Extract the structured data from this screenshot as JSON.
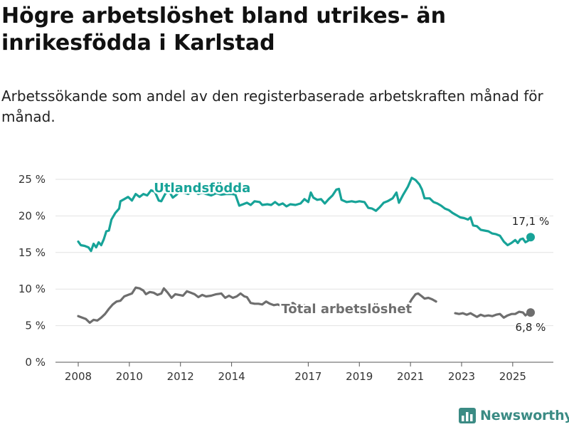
{
  "header": {
    "title": "Högre arbetslöshet bland utrikes- än inrikesfödda i Karlstad",
    "subtitle": "Arbetssökande som andel av den registerbaserade arbetskraften månad för månad."
  },
  "logo": {
    "text": "Newsworthy",
    "icon": "bar-chart-logo-icon"
  },
  "colors": {
    "utlandsfodda": "#17a398",
    "total": "#6e6e6e"
  },
  "chart_data": {
    "type": "line",
    "title": "Högre arbetslöshet bland utrikes- än inrikesfödda i Karlstad",
    "subtitle": "Arbetssökande som andel av den registerbaserade arbetskraften månad för månad.",
    "xlabel": "",
    "ylabel": "",
    "xlim": [
      2008.0,
      2025.7
    ],
    "ylim": [
      0,
      25
    ],
    "y_ticks": [
      0,
      5,
      10,
      15,
      20,
      25
    ],
    "y_tick_labels": [
      "0 %",
      "5 %",
      "10 %",
      "15 %",
      "20 %",
      "25 %"
    ],
    "x_ticks": [
      2008,
      2010,
      2012,
      2014,
      2017,
      2019,
      2021,
      2023,
      2025
    ],
    "x_tick_labels": [
      "2008",
      "2010",
      "2012",
      "2014",
      "2017",
      "2019",
      "2021",
      "2023",
      "2025"
    ],
    "grid": "horizontal",
    "series": [
      {
        "name": "Utlandsfödda",
        "color": "#17a398",
        "end_label": "17,1 %",
        "segments": [
          [
            [
              2008.0,
              16.5
            ],
            [
              2008.1,
              16.0
            ],
            [
              2008.25,
              15.9
            ],
            [
              2008.4,
              15.7
            ],
            [
              2008.5,
              15.2
            ],
            [
              2008.6,
              16.2
            ],
            [
              2008.7,
              15.7
            ],
            [
              2008.8,
              16.4
            ],
            [
              2008.9,
              16.0
            ],
            [
              2009.0,
              16.8
            ],
            [
              2009.1,
              17.9
            ],
            [
              2009.2,
              18.0
            ],
            [
              2009.3,
              19.5
            ],
            [
              2009.45,
              20.4
            ],
            [
              2009.6,
              21.0
            ],
            [
              2009.65,
              22.0
            ],
            [
              2009.8,
              22.3
            ],
            [
              2009.95,
              22.6
            ],
            [
              2010.1,
              22.1
            ],
            [
              2010.25,
              23.0
            ],
            [
              2010.4,
              22.6
            ],
            [
              2010.55,
              23.0
            ],
            [
              2010.7,
              22.8
            ],
            [
              2010.85,
              23.5
            ],
            [
              2011.0,
              23.3
            ],
            [
              2011.15,
              22.1
            ],
            [
              2011.25,
              22.0
            ],
            [
              2011.4,
              23.0
            ],
            [
              2011.55,
              23.4
            ],
            [
              2011.7,
              22.5
            ],
            [
              2011.85,
              22.9
            ],
            [
              2011.95,
              23.3
            ],
            [
              2012.1,
              23.2
            ],
            [
              2012.3,
              23.0
            ],
            [
              2012.5,
              23.4
            ],
            [
              2012.7,
              23.0
            ],
            [
              2012.85,
              23.2
            ],
            [
              2013.0,
              23.0
            ],
            [
              2013.2,
              22.8
            ],
            [
              2013.4,
              23.1
            ],
            [
              2013.6,
              22.9
            ],
            [
              2013.8,
              23.0
            ],
            [
              2014.0,
              23.0
            ],
            [
              2014.15,
              22.9
            ],
            [
              2014.3,
              21.4
            ],
            [
              2014.45,
              21.6
            ],
            [
              2014.6,
              21.8
            ],
            [
              2014.75,
              21.5
            ],
            [
              2014.9,
              22.0
            ],
            [
              2015.1,
              21.9
            ],
            [
              2015.2,
              21.5
            ],
            [
              2015.4,
              21.6
            ],
            [
              2015.55,
              21.5
            ],
            [
              2015.7,
              21.9
            ],
            [
              2015.85,
              21.5
            ],
            [
              2016.0,
              21.7
            ],
            [
              2016.15,
              21.3
            ],
            [
              2016.3,
              21.6
            ],
            [
              2016.5,
              21.5
            ],
            [
              2016.7,
              21.7
            ],
            [
              2016.85,
              22.3
            ],
            [
              2017.0,
              21.9
            ],
            [
              2017.1,
              23.2
            ],
            [
              2017.2,
              22.5
            ],
            [
              2017.35,
              22.2
            ],
            [
              2017.5,
              22.3
            ],
            [
              2017.65,
              21.7
            ],
            [
              2017.8,
              22.3
            ],
            [
              2017.95,
              22.8
            ],
            [
              2018.1,
              23.6
            ],
            [
              2018.2,
              23.7
            ],
            [
              2018.3,
              22.2
            ],
            [
              2018.5,
              21.9
            ],
            [
              2018.7,
              22.0
            ],
            [
              2018.85,
              21.9
            ],
            [
              2019.0,
              22.0
            ],
            [
              2019.2,
              21.9
            ],
            [
              2019.35,
              21.1
            ],
            [
              2019.5,
              21.0
            ],
            [
              2019.65,
              20.7
            ],
            [
              2019.8,
              21.2
            ],
            [
              2019.95,
              21.8
            ],
            [
              2020.1,
              22.0
            ],
            [
              2020.3,
              22.4
            ],
            [
              2020.45,
              23.2
            ],
            [
              2020.55,
              21.8
            ],
            [
              2020.7,
              22.8
            ],
            [
              2020.9,
              24.0
            ],
            [
              2021.05,
              25.2
            ],
            [
              2021.2,
              24.9
            ],
            [
              2021.35,
              24.3
            ],
            [
              2021.45,
              23.6
            ],
            [
              2021.55,
              22.4
            ],
            [
              2021.75,
              22.4
            ],
            [
              2021.9,
              21.9
            ],
            [
              2022.05,
              21.7
            ],
            [
              2022.2,
              21.4
            ],
            [
              2022.35,
              21.0
            ],
            [
              2022.5,
              20.8
            ],
            [
              2022.65,
              20.4
            ],
            [
              2022.8,
              20.1
            ],
            [
              2022.95,
              19.8
            ],
            [
              2023.1,
              19.7
            ],
            [
              2023.25,
              19.5
            ],
            [
              2023.35,
              19.8
            ],
            [
              2023.45,
              18.7
            ],
            [
              2023.6,
              18.6
            ],
            [
              2023.75,
              18.1
            ],
            [
              2023.9,
              18.0
            ],
            [
              2024.05,
              17.9
            ],
            [
              2024.2,
              17.6
            ],
            [
              2024.35,
              17.5
            ],
            [
              2024.5,
              17.3
            ],
            [
              2024.65,
              16.5
            ],
            [
              2024.8,
              16.0
            ],
            [
              2024.95,
              16.3
            ],
            [
              2025.1,
              16.7
            ],
            [
              2025.2,
              16.3
            ],
            [
              2025.3,
              16.8
            ],
            [
              2025.4,
              16.9
            ],
            [
              2025.5,
              16.4
            ],
            [
              2025.6,
              16.6
            ],
            [
              2025.7,
              17.1
            ]
          ]
        ]
      },
      {
        "name": "Total arbetslöshet",
        "color": "#6e6e6e",
        "end_label": "6,8 %",
        "segments": [
          [
            [
              2008.0,
              6.3
            ],
            [
              2008.15,
              6.1
            ],
            [
              2008.3,
              5.9
            ],
            [
              2008.45,
              5.4
            ],
            [
              2008.6,
              5.8
            ],
            [
              2008.75,
              5.7
            ],
            [
              2008.9,
              6.1
            ],
            [
              2009.05,
              6.6
            ],
            [
              2009.2,
              7.3
            ],
            [
              2009.35,
              7.9
            ],
            [
              2009.5,
              8.3
            ],
            [
              2009.65,
              8.4
            ],
            [
              2009.8,
              9.0
            ],
            [
              2009.95,
              9.2
            ],
            [
              2010.1,
              9.4
            ],
            [
              2010.25,
              10.2
            ],
            [
              2010.4,
              10.1
            ],
            [
              2010.55,
              9.8
            ],
            [
              2010.65,
              9.3
            ],
            [
              2010.8,
              9.6
            ],
            [
              2010.95,
              9.5
            ],
            [
              2011.1,
              9.2
            ],
            [
              2011.25,
              9.4
            ],
            [
              2011.35,
              10.1
            ],
            [
              2011.5,
              9.5
            ],
            [
              2011.65,
              8.8
            ],
            [
              2011.8,
              9.3
            ],
            [
              2011.95,
              9.2
            ],
            [
              2012.1,
              9.1
            ],
            [
              2012.25,
              9.7
            ],
            [
              2012.4,
              9.5
            ],
            [
              2012.55,
              9.3
            ],
            [
              2012.7,
              8.9
            ],
            [
              2012.85,
              9.2
            ],
            [
              2013.0,
              9.0
            ],
            [
              2013.2,
              9.1
            ],
            [
              2013.4,
              9.3
            ],
            [
              2013.6,
              9.4
            ],
            [
              2013.75,
              8.8
            ],
            [
              2013.9,
              9.1
            ],
            [
              2014.05,
              8.8
            ],
            [
              2014.2,
              9.0
            ],
            [
              2014.35,
              9.4
            ],
            [
              2014.5,
              9.0
            ],
            [
              2014.6,
              8.9
            ],
            [
              2014.75,
              8.1
            ],
            [
              2014.9,
              8.0
            ],
            [
              2015.05,
              8.0
            ],
            [
              2015.2,
              7.9
            ],
            [
              2015.35,
              8.3
            ],
            [
              2015.5,
              8.0
            ],
            [
              2015.65,
              7.8
            ],
            [
              2015.8,
              7.9
            ],
            [
              2015.95,
              7.7
            ],
            [
              2016.1,
              8.0
            ],
            [
              2016.25,
              7.9
            ],
            [
              2016.4,
              8.1
            ],
            [
              2016.55,
              7.7
            ],
            [
              2016.7,
              7.4
            ],
            [
              2016.85,
              7.8
            ],
            [
              2017.0,
              7.6
            ]
          ],
          [
            [
              2017.0,
              7.5
            ],
            [
              2017.15,
              7.6
            ]
          ],
          [
            [
              2020.95,
              8.0
            ],
            [
              2021.05,
              8.6
            ],
            [
              2021.2,
              9.3
            ],
            [
              2021.3,
              9.4
            ],
            [
              2021.45,
              9.0
            ],
            [
              2021.55,
              8.7
            ],
            [
              2021.7,
              8.8
            ],
            [
              2021.85,
              8.6
            ],
            [
              2022.0,
              8.3
            ]
          ],
          [
            [
              2022.75,
              6.7
            ],
            [
              2022.9,
              6.6
            ],
            [
              2023.05,
              6.7
            ],
            [
              2023.2,
              6.5
            ],
            [
              2023.35,
              6.7
            ],
            [
              2023.45,
              6.5
            ],
            [
              2023.6,
              6.2
            ],
            [
              2023.75,
              6.5
            ],
            [
              2023.9,
              6.3
            ],
            [
              2024.05,
              6.4
            ],
            [
              2024.2,
              6.3
            ],
            [
              2024.35,
              6.5
            ],
            [
              2024.5,
              6.6
            ],
            [
              2024.65,
              6.1
            ],
            [
              2024.8,
              6.4
            ],
            [
              2024.95,
              6.6
            ],
            [
              2025.1,
              6.6
            ],
            [
              2025.25,
              6.9
            ],
            [
              2025.4,
              6.8
            ],
            [
              2025.5,
              6.4
            ],
            [
              2025.6,
              6.7
            ],
            [
              2025.7,
              6.8
            ]
          ]
        ]
      }
    ]
  }
}
